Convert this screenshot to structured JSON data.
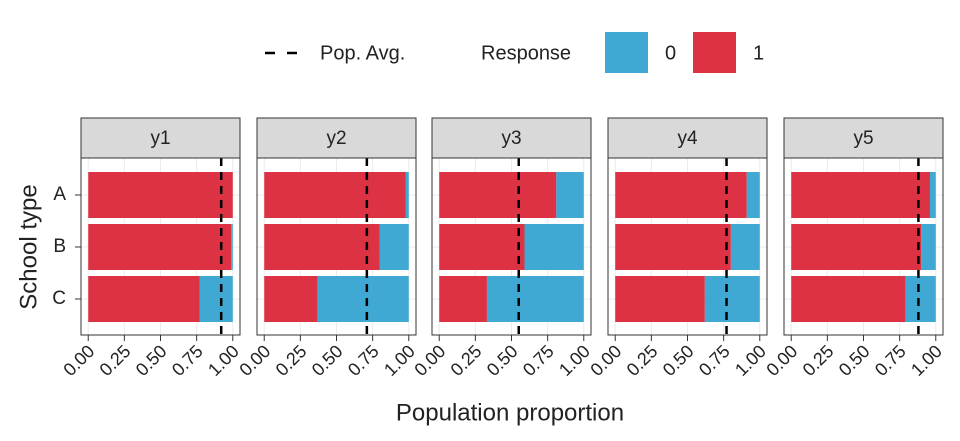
{
  "chart_data": {
    "type": "bar",
    "stacked": true,
    "orientation": "horizontal",
    "xlabel": "Population proportion",
    "ylabel": "School type",
    "legend_title": "Response",
    "avg_label": "Pop. Avg.",
    "categories": [
      "A",
      "B",
      "C"
    ],
    "xlim": [
      -0.05,
      1.05
    ],
    "xticks": [
      {
        "value": 0,
        "label": "0.00"
      },
      {
        "value": 0.25,
        "label": "0.25"
      },
      {
        "value": 0.5,
        "label": "0.50"
      },
      {
        "value": 0.75,
        "label": "0.75"
      },
      {
        "value": 1,
        "label": "1.00"
      }
    ],
    "grid": true,
    "series_style": [
      {
        "name": "0",
        "color": "#3fa9d4"
      },
      {
        "name": "1",
        "color": "#dc3244"
      }
    ],
    "facets": [
      {
        "title": "y1",
        "pop_avg": 0.92,
        "series": [
          {
            "name": "0",
            "values": [
              0,
              0.01,
              0.23
            ]
          },
          {
            "name": "1",
            "values": [
              1.0,
              0.99,
              0.77
            ]
          }
        ]
      },
      {
        "title": "y2",
        "pop_avg": 0.71,
        "series": [
          {
            "name": "0",
            "values": [
              0.02,
              0.2,
              0.63
            ]
          },
          {
            "name": "1",
            "values": [
              0.98,
              0.8,
              0.37
            ]
          }
        ]
      },
      {
        "title": "y3",
        "pop_avg": 0.55,
        "series": [
          {
            "name": "0",
            "values": [
              0.19,
              0.41,
              0.67
            ]
          },
          {
            "name": "1",
            "values": [
              0.81,
              0.59,
              0.33
            ]
          }
        ]
      },
      {
        "title": "y4",
        "pop_avg": 0.77,
        "series": [
          {
            "name": "0",
            "values": [
              0.09,
              0.2,
              0.38
            ]
          },
          {
            "name": "1",
            "values": [
              0.91,
              0.8,
              0.62
            ]
          }
        ]
      },
      {
        "title": "y5",
        "pop_avg": 0.88,
        "series": [
          {
            "name": "0",
            "values": [
              0.04,
              0.1,
              0.21
            ]
          },
          {
            "name": "1",
            "values": [
              0.96,
              0.9,
              0.79
            ]
          }
        ]
      }
    ]
  }
}
